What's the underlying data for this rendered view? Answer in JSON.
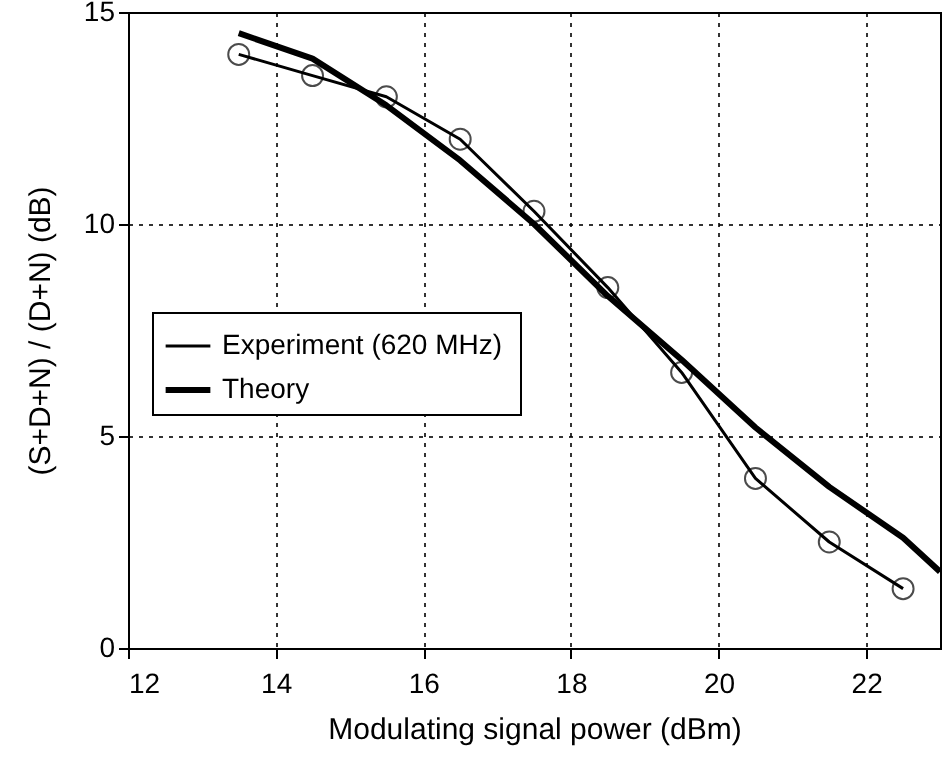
{
  "chart_data": {
    "type": "line",
    "xlabel": "Modulating signal power    (dBm)",
    "ylabel": "(S+D+N) / (D+N)     (dB)",
    "xlim": [
      12,
      23
    ],
    "xticks": [
      12,
      14,
      16,
      18,
      20,
      22
    ],
    "ylim": [
      0,
      15
    ],
    "yticks": [
      0,
      5,
      10,
      15
    ],
    "grid": true,
    "legend": "left",
    "series": [
      {
        "name": "Experiment  (620 MHz)",
        "color": "#000000",
        "marker": "circle",
        "x": [
          13.5,
          14.5,
          15.5,
          16.5,
          17.5,
          18.5,
          19.5,
          20.5,
          21.5,
          22.5
        ],
        "values": [
          14.0,
          13.5,
          13.0,
          12.0,
          10.3,
          8.5,
          6.5,
          4.0,
          2.5,
          1.4
        ]
      },
      {
        "name": "Theory",
        "color": "#000000",
        "marker": "none",
        "x": [
          13.5,
          14.5,
          15.5,
          16.5,
          17.5,
          18.5,
          19.5,
          20.5,
          21.5,
          22.5,
          23
        ],
        "values": [
          14.5,
          13.9,
          12.8,
          11.5,
          10.0,
          8.3,
          6.8,
          5.2,
          3.8,
          2.6,
          1.8
        ]
      }
    ]
  }
}
